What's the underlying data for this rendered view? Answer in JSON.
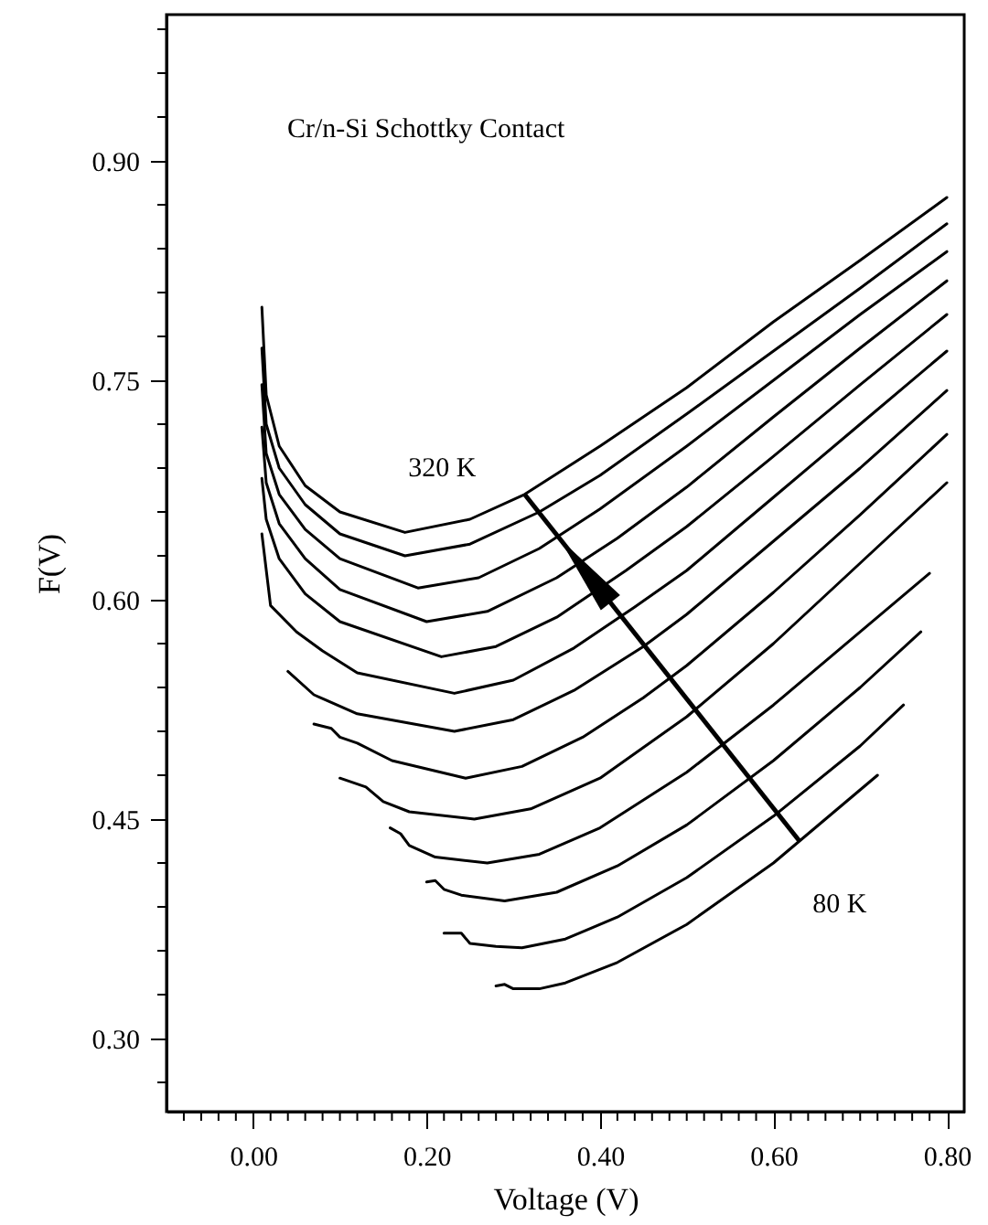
{
  "chart_data": {
    "type": "line",
    "xlabel": "Voltage (V)",
    "ylabel": "F(V)",
    "annotations": [
      "Cr/n-Si Schottky Contact",
      {
        "text": "320 K",
        "x": 0.313,
        "y": 0.672
      },
      {
        "text": "80 K",
        "x": 0.63,
        "y": 0.435
      }
    ],
    "xlim": [
      -0.1,
      0.82
    ],
    "ylim": [
      0.25,
      1.0
    ],
    "xticks": [
      {
        "value": -0.08,
        "label": null
      },
      {
        "value": -0.06,
        "label": null
      },
      {
        "value": -0.04,
        "label": null
      },
      {
        "value": -0.02,
        "label": null
      },
      {
        "value": 0,
        "label": "0.00"
      },
      {
        "value": 0.02,
        "label": null
      },
      {
        "value": 0.04,
        "label": null
      },
      {
        "value": 0.06,
        "label": null
      },
      {
        "value": 0.08,
        "label": null
      },
      {
        "value": 0.1,
        "label": null
      },
      {
        "value": 0.12,
        "label": null
      },
      {
        "value": 0.14,
        "label": null
      },
      {
        "value": 0.16,
        "label": null
      },
      {
        "value": 0.18,
        "label": null
      },
      {
        "value": 0.2,
        "label": "0.20"
      },
      {
        "value": 0.22,
        "label": null
      },
      {
        "value": 0.24,
        "label": null
      },
      {
        "value": 0.26,
        "label": null
      },
      {
        "value": 0.28,
        "label": null
      },
      {
        "value": 0.3,
        "label": null
      },
      {
        "value": 0.32,
        "label": null
      },
      {
        "value": 0.34,
        "label": null
      },
      {
        "value": 0.36,
        "label": null
      },
      {
        "value": 0.38,
        "label": null
      },
      {
        "value": 0.4,
        "label": "0.40"
      },
      {
        "value": 0.42,
        "label": null
      },
      {
        "value": 0.44,
        "label": null
      },
      {
        "value": 0.46,
        "label": null
      },
      {
        "value": 0.48,
        "label": null
      },
      {
        "value": 0.5,
        "label": null
      },
      {
        "value": 0.52,
        "label": null
      },
      {
        "value": 0.54,
        "label": null
      },
      {
        "value": 0.56,
        "label": null
      },
      {
        "value": 0.58,
        "label": null
      },
      {
        "value": 0.6,
        "label": "0.60"
      },
      {
        "value": 0.62,
        "label": null
      },
      {
        "value": 0.64,
        "label": null
      },
      {
        "value": 0.66,
        "label": null
      },
      {
        "value": 0.68,
        "label": null
      },
      {
        "value": 0.7,
        "label": null
      },
      {
        "value": 0.72,
        "label": null
      },
      {
        "value": 0.74,
        "label": null
      },
      {
        "value": 0.76,
        "label": null
      },
      {
        "value": 0.78,
        "label": null
      },
      {
        "value": 0.8,
        "label": "0.80"
      }
    ],
    "yticks": [
      {
        "value": 0.27,
        "label": null
      },
      {
        "value": 0.3,
        "label": "0.30"
      },
      {
        "value": 0.33,
        "label": null
      },
      {
        "value": 0.36,
        "label": null
      },
      {
        "value": 0.39,
        "label": null
      },
      {
        "value": 0.42,
        "label": null
      },
      {
        "value": 0.45,
        "label": "0.45"
      },
      {
        "value": 0.48,
        "label": null
      },
      {
        "value": 0.51,
        "label": null
      },
      {
        "value": 0.54,
        "label": null
      },
      {
        "value": 0.57,
        "label": null
      },
      {
        "value": 0.6,
        "label": "0.60"
      },
      {
        "value": 0.63,
        "label": null
      },
      {
        "value": 0.66,
        "label": null
      },
      {
        "value": 0.69,
        "label": null
      },
      {
        "value": 0.72,
        "label": null
      },
      {
        "value": 0.75,
        "label": "0.75"
      },
      {
        "value": 0.78,
        "label": null
      },
      {
        "value": 0.81,
        "label": null
      },
      {
        "value": 0.84,
        "label": null
      },
      {
        "value": 0.87,
        "label": null
      },
      {
        "value": 0.9,
        "label": "0.90"
      },
      {
        "value": 0.93,
        "label": null
      },
      {
        "value": 0.96,
        "label": null
      },
      {
        "value": 0.99,
        "label": null
      }
    ],
    "grid": false,
    "marker": "none",
    "line_style": "solid",
    "series": [
      {
        "color": "#000000",
        "x": [
          0.01,
          0.015,
          0.03,
          0.06,
          0.1,
          0.175,
          0.25,
          0.313,
          0.4,
          0.5,
          0.6,
          0.7,
          0.8
        ],
        "values": [
          0.8,
          0.74,
          0.705,
          0.678,
          0.66,
          0.646,
          0.655,
          0.672,
          0.705,
          0.745,
          0.79,
          0.832,
          0.875
        ]
      },
      {
        "color": "#000000",
        "x": [
          0.01,
          0.015,
          0.03,
          0.06,
          0.1,
          0.175,
          0.25,
          0.33,
          0.4,
          0.5,
          0.6,
          0.7,
          0.8
        ],
        "values": [
          0.772,
          0.72,
          0.69,
          0.665,
          0.645,
          0.63,
          0.638,
          0.66,
          0.685,
          0.727,
          0.77,
          0.813,
          0.857
        ]
      },
      {
        "color": "#000000",
        "x": [
          0.01,
          0.015,
          0.03,
          0.06,
          0.1,
          0.19,
          0.26,
          0.33,
          0.4,
          0.5,
          0.6,
          0.7,
          0.8
        ],
        "values": [
          0.747,
          0.7,
          0.672,
          0.648,
          0.628,
          0.608,
          0.615,
          0.635,
          0.662,
          0.705,
          0.75,
          0.795,
          0.838
        ]
      },
      {
        "color": "#000000",
        "x": [
          0.01,
          0.015,
          0.03,
          0.06,
          0.1,
          0.2,
          0.27,
          0.35,
          0.42,
          0.5,
          0.6,
          0.7,
          0.8
        ],
        "values": [
          0.718,
          0.68,
          0.652,
          0.628,
          0.607,
          0.585,
          0.592,
          0.615,
          0.642,
          0.677,
          0.725,
          0.772,
          0.818
        ]
      },
      {
        "color": "#000000",
        "x": [
          0.01,
          0.015,
          0.03,
          0.06,
          0.1,
          0.217,
          0.28,
          0.35,
          0.43,
          0.5,
          0.6,
          0.7,
          0.8
        ],
        "values": [
          0.683,
          0.655,
          0.628,
          0.604,
          0.585,
          0.561,
          0.568,
          0.588,
          0.62,
          0.65,
          0.698,
          0.747,
          0.795
        ]
      },
      {
        "color": "#000000",
        "x": [
          0.01,
          0.02,
          0.05,
          0.08,
          0.12,
          0.232,
          0.3,
          0.37,
          0.44,
          0.5,
          0.6,
          0.7,
          0.8
        ],
        "values": [
          0.645,
          0.596,
          0.578,
          0.565,
          0.55,
          0.536,
          0.545,
          0.567,
          0.595,
          0.62,
          0.67,
          0.72,
          0.77
        ]
      },
      {
        "color": "#000000",
        "x": [
          0.04,
          0.07,
          0.12,
          0.232,
          0.3,
          0.37,
          0.45,
          0.5,
          0.6,
          0.7,
          0.8
        ],
        "values": [
          0.551,
          0.535,
          0.522,
          0.51,
          0.518,
          0.538,
          0.568,
          0.59,
          0.64,
          0.69,
          0.743
        ]
      },
      {
        "color": "#000000",
        "x": [
          0.07,
          0.09,
          0.1,
          0.12,
          0.16,
          0.245,
          0.31,
          0.38,
          0.45,
          0.5,
          0.6,
          0.7,
          0.8
        ],
        "values": [
          0.515,
          0.512,
          0.506,
          0.502,
          0.49,
          0.478,
          0.486,
          0.506,
          0.533,
          0.555,
          0.605,
          0.658,
          0.713
        ]
      },
      {
        "color": "#000000",
        "x": [
          0.1,
          0.13,
          0.15,
          0.18,
          0.255,
          0.32,
          0.4,
          0.5,
          0.6,
          0.7,
          0.8
        ],
        "values": [
          0.478,
          0.472,
          0.462,
          0.455,
          0.45,
          0.457,
          0.478,
          0.52,
          0.57,
          0.625,
          0.68
        ]
      },
      {
        "color": "#000000",
        "x": [
          0.158,
          0.17,
          0.18,
          0.21,
          0.27,
          0.33,
          0.4,
          0.5,
          0.6,
          0.7,
          0.78
        ],
        "values": [
          0.444,
          0.44,
          0.432,
          0.424,
          0.42,
          0.426,
          0.444,
          0.482,
          0.528,
          0.578,
          0.618
        ]
      },
      {
        "color": "#000000",
        "x": [
          0.2,
          0.21,
          0.22,
          0.24,
          0.29,
          0.35,
          0.42,
          0.5,
          0.6,
          0.7,
          0.77
        ],
        "values": [
          0.407,
          0.408,
          0.402,
          0.398,
          0.394,
          0.4,
          0.418,
          0.446,
          0.49,
          0.54,
          0.578
        ]
      },
      {
        "color": "#000000",
        "x": [
          0.22,
          0.24,
          0.25,
          0.28,
          0.31,
          0.36,
          0.42,
          0.5,
          0.6,
          0.7,
          0.75
        ],
        "values": [
          0.372,
          0.372,
          0.365,
          0.363,
          0.362,
          0.368,
          0.383,
          0.41,
          0.452,
          0.5,
          0.528
        ]
      },
      {
        "color": "#000000",
        "x": [
          0.28,
          0.29,
          0.3,
          0.33,
          0.36,
          0.42,
          0.5,
          0.6,
          0.63,
          0.72
        ],
        "values": [
          0.336,
          0.337,
          0.334,
          0.334,
          0.338,
          0.352,
          0.378,
          0.42,
          0.435,
          0.48
        ]
      }
    ]
  }
}
